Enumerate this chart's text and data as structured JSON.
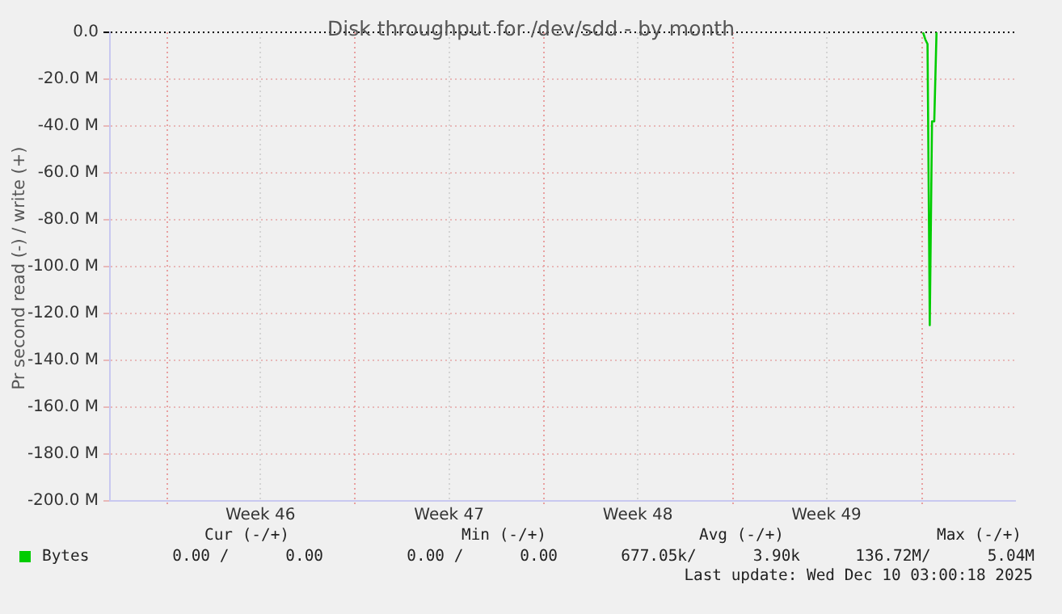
{
  "chart_data": {
    "type": "line",
    "title": "Disk throughput for /dev/sdd - by month",
    "ylabel": "Pr second read (-) / write (+)",
    "categories": [
      null,
      null,
      null,
      null,
      null,
      null,
      null,
      null,
      null,
      null,
      null,
      null,
      null,
      null,
      null,
      null,
      null,
      null,
      null,
      null,
      null,
      null,
      null,
      null,
      null,
      null,
      null,
      null,
      null,
      null,
      null,
      null,
      null,
      null,
      null,
      null,
      null,
      null,
      null,
      null,
      null,
      null,
      null,
      null,
      null,
      null,
      null,
      null,
      null,
      null,
      null,
      null,
      null,
      null,
      null,
      null,
      null,
      null,
      null,
      null,
      null,
      null,
      null,
      null,
      null,
      null,
      null,
      "Week 46",
      null,
      null,
      null,
      null,
      null,
      null,
      null,
      null,
      null,
      null,
      null,
      null,
      null,
      null,
      null,
      null,
      null,
      null,
      null,
      null,
      null,
      null,
      null,
      null,
      null,
      null,
      null,
      null,
      null,
      null,
      null,
      null,
      null,
      null,
      null,
      null,
      null,
      null,
      null,
      null,
      null,
      null,
      null,
      null,
      null,
      null,
      null,
      null,
      null,
      null,
      null,
      null,
      null,
      null,
      null,
      null,
      null,
      null,
      null,
      null,
      null,
      null,
      null,
      null,
      null,
      null,
      null,
      null,
      null,
      null,
      null,
      null,
      null,
      null,
      null,
      null,
      null,
      null,
      null,
      null,
      null,
      null,
      null,
      "Week 47",
      null,
      null,
      null,
      null,
      null,
      null,
      null,
      null,
      null,
      null,
      null,
      null,
      null,
      null,
      null,
      null,
      null,
      null,
      null,
      null,
      null,
      null,
      null,
      null,
      null,
      null,
      null,
      null,
      null,
      null,
      null,
      null,
      null,
      null,
      null,
      null,
      null,
      null,
      null,
      null,
      null,
      null,
      null,
      null,
      null,
      null,
      null,
      null,
      null,
      null,
      null,
      null,
      null,
      null,
      null,
      null,
      null,
      null,
      null,
      null,
      null,
      null,
      null,
      null,
      null,
      null,
      null,
      null,
      null,
      null,
      null,
      null,
      null,
      null,
      null,
      null,
      null,
      null,
      null,
      null,
      null,
      null,
      null,
      "Week 48",
      null,
      null,
      null,
      null,
      null,
      null,
      null,
      null,
      null,
      null,
      null,
      null,
      null,
      null,
      null,
      null,
      null,
      null,
      null,
      null,
      null,
      null,
      null,
      null,
      null,
      null,
      null,
      null,
      null,
      null,
      null,
      null,
      null,
      null,
      null,
      null,
      null,
      null,
      null,
      null,
      null,
      null,
      null,
      null,
      null,
      null,
      null,
      null,
      null,
      null,
      null,
      null,
      null,
      null,
      null,
      null,
      null,
      null,
      null,
      null,
      null,
      null,
      null,
      null,
      null,
      null,
      null,
      null,
      null,
      null,
      null,
      null,
      null,
      null,
      null,
      null,
      null,
      null,
      null,
      null,
      null,
      null,
      null,
      "Week 49",
      null,
      null,
      null,
      null,
      null,
      null,
      null,
      null,
      null,
      null,
      null,
      null,
      null,
      null,
      null,
      null,
      null,
      null,
      null,
      null,
      null,
      null,
      null,
      null,
      null,
      null,
      null,
      null,
      null,
      null,
      null,
      null,
      null,
      null,
      null,
      null,
      null,
      null,
      null,
      null,
      null,
      null,
      null,
      null,
      null,
      null,
      null,
      null,
      null,
      null,
      null,
      null,
      null,
      null,
      null,
      null,
      null,
      null,
      null,
      null,
      null,
      null,
      null,
      null,
      null,
      null,
      null,
      null,
      null,
      null,
      null,
      null,
      null,
      null,
      null,
      null,
      null,
      null,
      null,
      null,
      null,
      null,
      null,
      null
    ],
    "series": [
      {
        "name": "Bytes",
        "color": "#00cc00",
        "values": [
          null,
          null,
          null,
          null,
          null,
          null,
          null,
          null,
          null,
          null,
          null,
          null,
          null,
          null,
          null,
          null,
          null,
          null,
          null,
          null,
          null,
          null,
          null,
          null,
          null,
          null,
          null,
          null,
          null,
          null,
          null,
          null,
          null,
          null,
          null,
          null,
          null,
          null,
          null,
          null,
          null,
          null,
          null,
          null,
          null,
          null,
          null,
          null,
          null,
          null,
          null,
          null,
          null,
          null,
          null,
          null,
          null,
          null,
          null,
          null,
          null,
          null,
          null,
          null,
          null,
          null,
          null,
          null,
          null,
          null,
          null,
          null,
          null,
          null,
          null,
          null,
          null,
          null,
          null,
          null,
          null,
          null,
          null,
          null,
          null,
          null,
          null,
          null,
          null,
          null,
          null,
          null,
          null,
          null,
          null,
          null,
          null,
          null,
          null,
          null,
          null,
          null,
          null,
          null,
          null,
          null,
          null,
          null,
          null,
          null,
          null,
          null,
          null,
          null,
          null,
          null,
          null,
          null,
          null,
          null,
          null,
          null,
          null,
          null,
          null,
          null,
          null,
          null,
          null,
          null,
          null,
          null,
          null,
          null,
          null,
          null,
          null,
          null,
          null,
          null,
          null,
          null,
          null,
          null,
          null,
          null,
          null,
          null,
          null,
          null,
          null,
          null,
          null,
          null,
          null,
          null,
          null,
          null,
          null,
          null,
          null,
          null,
          null,
          null,
          null,
          null,
          null,
          null,
          null,
          null,
          null,
          null,
          null,
          null,
          null,
          null,
          null,
          null,
          null,
          null,
          null,
          null,
          null,
          null,
          null,
          null,
          null,
          null,
          null,
          null,
          null,
          null,
          null,
          null,
          null,
          null,
          null,
          null,
          null,
          null,
          null,
          null,
          null,
          null,
          null,
          null,
          null,
          null,
          null,
          null,
          null,
          null,
          null,
          null,
          null,
          null,
          null,
          null,
          null,
          null,
          null,
          null,
          null,
          null,
          null,
          null,
          null,
          null,
          null,
          null,
          null,
          null,
          null,
          null,
          null,
          null,
          null,
          null,
          null,
          null,
          null,
          null,
          null,
          null,
          null,
          null,
          null,
          null,
          null,
          null,
          null,
          null,
          null,
          null,
          null,
          null,
          null,
          null,
          null,
          null,
          null,
          null,
          null,
          null,
          null,
          null,
          null,
          null,
          null,
          null,
          null,
          null,
          null,
          null,
          null,
          null,
          null,
          null,
          null,
          null,
          null,
          null,
          null,
          null,
          null,
          null,
          null,
          null,
          null,
          null,
          null,
          null,
          null,
          null,
          null,
          null,
          null,
          null,
          null,
          null,
          null,
          null,
          null,
          null,
          null,
          null,
          null,
          null,
          null,
          null,
          null,
          null,
          null,
          null,
          null,
          null,
          null,
          null,
          null,
          null,
          null,
          null,
          null,
          null,
          null,
          null,
          null,
          null,
          null,
          null,
          null,
          null,
          null,
          null,
          null,
          null,
          null,
          null,
          null,
          null,
          null,
          null,
          null,
          null,
          null,
          null,
          null,
          null,
          null,
          null,
          null,
          null,
          null,
          null,
          null,
          null,
          null,
          null,
          null,
          null,
          null,
          null,
          0,
          -3,
          -5,
          -125,
          -38,
          -38,
          0,
          null,
          null,
          null,
          null,
          null,
          null,
          null,
          null,
          null,
          null,
          null,
          null,
          null,
          null,
          null,
          null,
          null,
          null,
          null,
          null,
          null,
          null,
          null,
          null,
          null,
          null,
          null,
          null,
          null,
          null,
          null,
          null,
          null,
          null,
          null
        ]
      }
    ],
    "ylim": [
      -200,
      0
    ],
    "yticks": [
      {
        "value": -200,
        "label": "-200.0 M"
      },
      {
        "value": -180,
        "label": "-180.0 M"
      },
      {
        "value": -160,
        "label": "-160.0 M"
      },
      {
        "value": -140,
        "label": "-140.0 M"
      },
      {
        "value": -120,
        "label": "-120.0 M"
      },
      {
        "value": -100,
        "label": "-100.0 M"
      },
      {
        "value": -80,
        "label": "-80.0 M"
      },
      {
        "value": -60,
        "label": "-60.0 M"
      },
      {
        "value": -40,
        "label": "-40.0 M"
      },
      {
        "value": -20,
        "label": "-20.0 M"
      },
      {
        "value": 0,
        "label": "0.0"
      }
    ],
    "grid": true,
    "legend": "bottom",
    "marker": "none",
    "line_style": "solid",
    "annotations": [
      "Cur (-/+)",
      "Min (-/+)",
      "Avg (-/+)",
      "Max (-/+)",
      "0.00 /      0.00",
      "0.00 /      0.00",
      "677.05k/      3.90k",
      "136.72M/      5.04M",
      "Last update: Wed Dec 10 03:00:18 2025"
    ]
  }
}
